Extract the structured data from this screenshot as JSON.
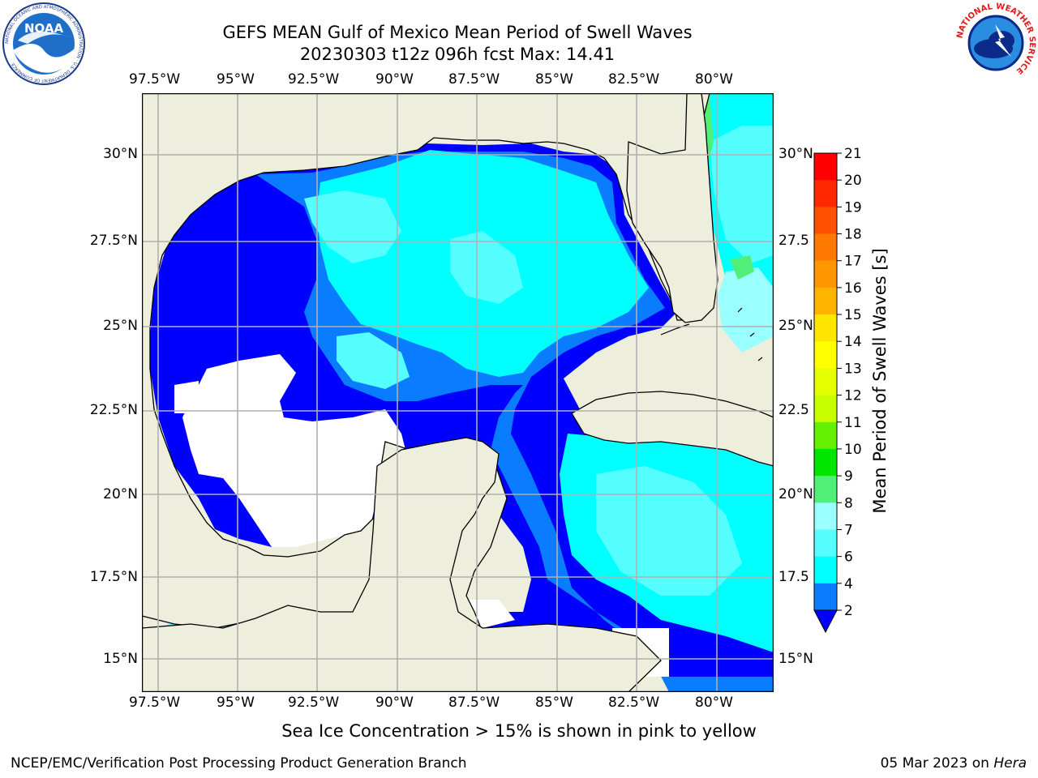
{
  "header": {
    "title_line1": "GEFS MEAN Gulf of Mexico Mean Period of Swell Waves",
    "title_line2": "20230303 t12z 096h fcst   Max: 14.41"
  },
  "logos": {
    "noara_text": "NOAA",
    "noaa_ring": "NATIONAL OCEANIC AND ATMOSPHERIC ADMINISTRATION · U.S. DEPARTMENT OF COMMERCE",
    "nws_ring": "NATIONAL WEATHER SERVICE"
  },
  "map": {
    "lon_labels": [
      "97.5°W",
      "95°W",
      "92.5°W",
      "90°W",
      "87.5°W",
      "85°W",
      "82.5°W",
      "80°W"
    ],
    "lat_labels_left": [
      "30°N",
      "27.5°N",
      "25°N",
      "22.5°N",
      "20°N",
      "17.5°N",
      "15°N"
    ],
    "lat_labels_right": [
      "30°N",
      "27.5",
      "25°N",
      "22.5",
      "20°N",
      "17.5",
      "15°N"
    ],
    "colors": {
      "land": "#eeeedd",
      "deep_blue": "#0000ff",
      "mid_blue": "#0a7cff",
      "cyan": "#00ffff",
      "light_cyan": "#55ffff",
      "pale": "#99ffff"
    }
  },
  "colorbar": {
    "label": "Mean Period of Swell Waves [s]",
    "ticks": [
      "21",
      "20",
      "19",
      "18",
      "17",
      "16",
      "15",
      "14",
      "13",
      "12",
      "11",
      "10",
      "9",
      "8",
      "7",
      "6",
      "4",
      "2"
    ],
    "colors": [
      "#ff0000",
      "#ff2800",
      "#ff5000",
      "#ff7800",
      "#ff9600",
      "#ffb400",
      "#ffe600",
      "#ffff00",
      "#e6ff00",
      "#c8ff00",
      "#64f000",
      "#00e600",
      "#50f078",
      "#99ffff",
      "#55ffff",
      "#00ffff",
      "#0a7cff"
    ],
    "extend_color": "#0000ff"
  },
  "notes": {
    "sea_ice": "Sea Ice Concentration > 15% is shown in pink to yellow"
  },
  "footer": {
    "left": "NCEP/EMC/Verification Post Processing Product Generation Branch",
    "date": "05 Mar 2023 on ",
    "host": "Hera"
  }
}
